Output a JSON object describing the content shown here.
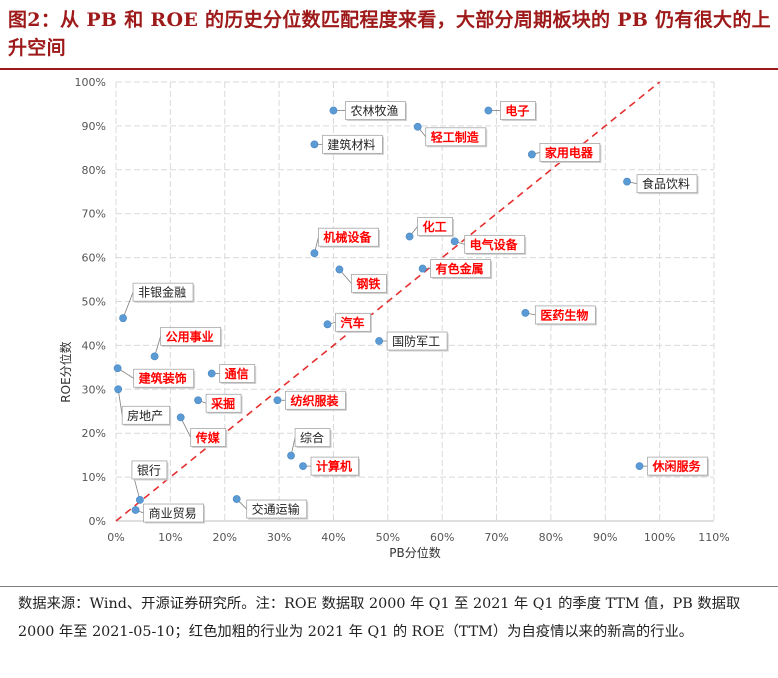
{
  "title": "图2：从 PB 和 ROE 的历史分位数匹配程度来看，大部分周期板块的 PB 仍有很大的上升空间",
  "source_note": "数据来源：Wind、开源证券研究所。注：ROE 数据取 2000 年 Q1 至 2021 年 Q1 的季度 TTM 值，PB 数据取 2000 年至 2021-05-10；红色加粗的行业为 2021 年 Q1 的 ROE（TTM）为自疫情以来的新高的行业。",
  "colors": {
    "point": "#5b9bd5",
    "highlight_text": "#ff0000",
    "normal_text": "#222222",
    "diagonal": "#e53030",
    "grid": "#d9d9d9"
  },
  "chart_data": {
    "type": "scatter",
    "xlabel": "PB分位数",
    "ylabel": "ROE分位数",
    "xlim": [
      0,
      1.1
    ],
    "ylim": [
      0,
      1.0
    ],
    "x_ticks": [
      "0%",
      "10%",
      "20%",
      "30%",
      "40%",
      "50%",
      "60%",
      "70%",
      "80%",
      "90%",
      "100%",
      "110%"
    ],
    "y_ticks": [
      "0%",
      "10%",
      "20%",
      "30%",
      "40%",
      "50%",
      "60%",
      "70%",
      "80%",
      "90%",
      "100%"
    ],
    "grid": true,
    "diagonal_line": {
      "from": [
        0,
        0
      ],
      "to": [
        1.0,
        1.0
      ],
      "style": "dashed"
    },
    "points": [
      {
        "name": "农林牧渔",
        "x": 0.4,
        "y": 0.935,
        "highlight": false
      },
      {
        "name": "电子",
        "x": 0.685,
        "y": 0.935,
        "highlight": true
      },
      {
        "name": "轻工制造",
        "x": 0.555,
        "y": 0.898,
        "highlight": true
      },
      {
        "name": "建筑材料",
        "x": 0.365,
        "y": 0.858,
        "highlight": false
      },
      {
        "name": "家用电器",
        "x": 0.765,
        "y": 0.835,
        "highlight": true
      },
      {
        "name": "食品饮料",
        "x": 0.94,
        "y": 0.773,
        "highlight": false
      },
      {
        "name": "化工",
        "x": 0.54,
        "y": 0.648,
        "highlight": true
      },
      {
        "name": "电气设备",
        "x": 0.623,
        "y": 0.637,
        "highlight": true
      },
      {
        "name": "机械设备",
        "x": 0.365,
        "y": 0.61,
        "highlight": true
      },
      {
        "name": "有色金属",
        "x": 0.564,
        "y": 0.575,
        "highlight": true
      },
      {
        "name": "钢铁",
        "x": 0.411,
        "y": 0.573,
        "highlight": true
      },
      {
        "name": "医药生物",
        "x": 0.753,
        "y": 0.474,
        "highlight": true
      },
      {
        "name": "非银金融",
        "x": 0.013,
        "y": 0.462,
        "highlight": false
      },
      {
        "name": "汽车",
        "x": 0.389,
        "y": 0.448,
        "highlight": true
      },
      {
        "name": "国防军工",
        "x": 0.484,
        "y": 0.41,
        "highlight": false
      },
      {
        "name": "公用事业",
        "x": 0.071,
        "y": 0.375,
        "highlight": true
      },
      {
        "name": "建筑装饰",
        "x": 0.003,
        "y": 0.348,
        "highlight": true
      },
      {
        "name": "通信",
        "x": 0.176,
        "y": 0.336,
        "highlight": true
      },
      {
        "name": "房地产",
        "x": 0.004,
        "y": 0.3,
        "highlight": false
      },
      {
        "name": "纺织服装",
        "x": 0.297,
        "y": 0.275,
        "highlight": true
      },
      {
        "name": "采掘",
        "x": 0.151,
        "y": 0.275,
        "highlight": true
      },
      {
        "name": "传媒",
        "x": 0.119,
        "y": 0.236,
        "highlight": true
      },
      {
        "name": "综合",
        "x": 0.322,
        "y": 0.149,
        "highlight": false
      },
      {
        "name": "计算机",
        "x": 0.344,
        "y": 0.125,
        "highlight": true
      },
      {
        "name": "休闲服务",
        "x": 0.963,
        "y": 0.125,
        "highlight": true
      },
      {
        "name": "交通运输",
        "x": 0.222,
        "y": 0.05,
        "highlight": false
      },
      {
        "name": "银行",
        "x": 0.044,
        "y": 0.048,
        "highlight": false
      },
      {
        "name": "商业贸易",
        "x": 0.036,
        "y": 0.025,
        "highlight": false
      }
    ]
  }
}
